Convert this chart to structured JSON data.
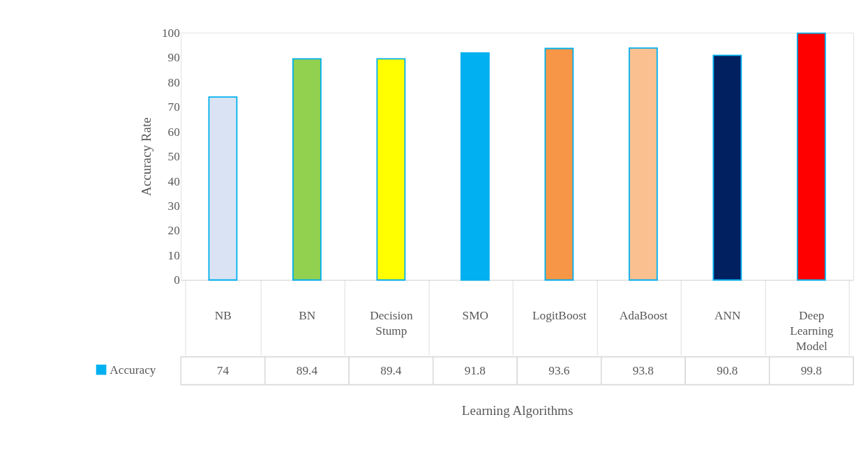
{
  "chart_data": {
    "type": "bar",
    "xlabel": "Learning Algorithms",
    "ylabel": "Accuracy Rate",
    "categories": [
      "NB",
      "BN",
      "Decision Stump",
      "SMO",
      "LogitBoost",
      "AdaBoost",
      "ANN",
      "Deep Learning Model"
    ],
    "series": [
      {
        "name": "Accuracy",
        "color": "#00b0f0",
        "values": [
          74,
          89.4,
          89.4,
          91.8,
          93.6,
          93.8,
          90.8,
          99.8
        ]
      }
    ],
    "colors": [
      "#dae3f3",
      "#92d050",
      "#ffff00",
      "#00b0f0",
      "#f79646",
      "#fac090",
      "#002060",
      "#ff0000"
    ],
    "ylim": [
      0,
      100
    ],
    "yticks": [
      0,
      10,
      20,
      30,
      40,
      50,
      60,
      70,
      80,
      90,
      100
    ],
    "grid": false,
    "legend": "bottom left",
    "data_labels": true
  }
}
